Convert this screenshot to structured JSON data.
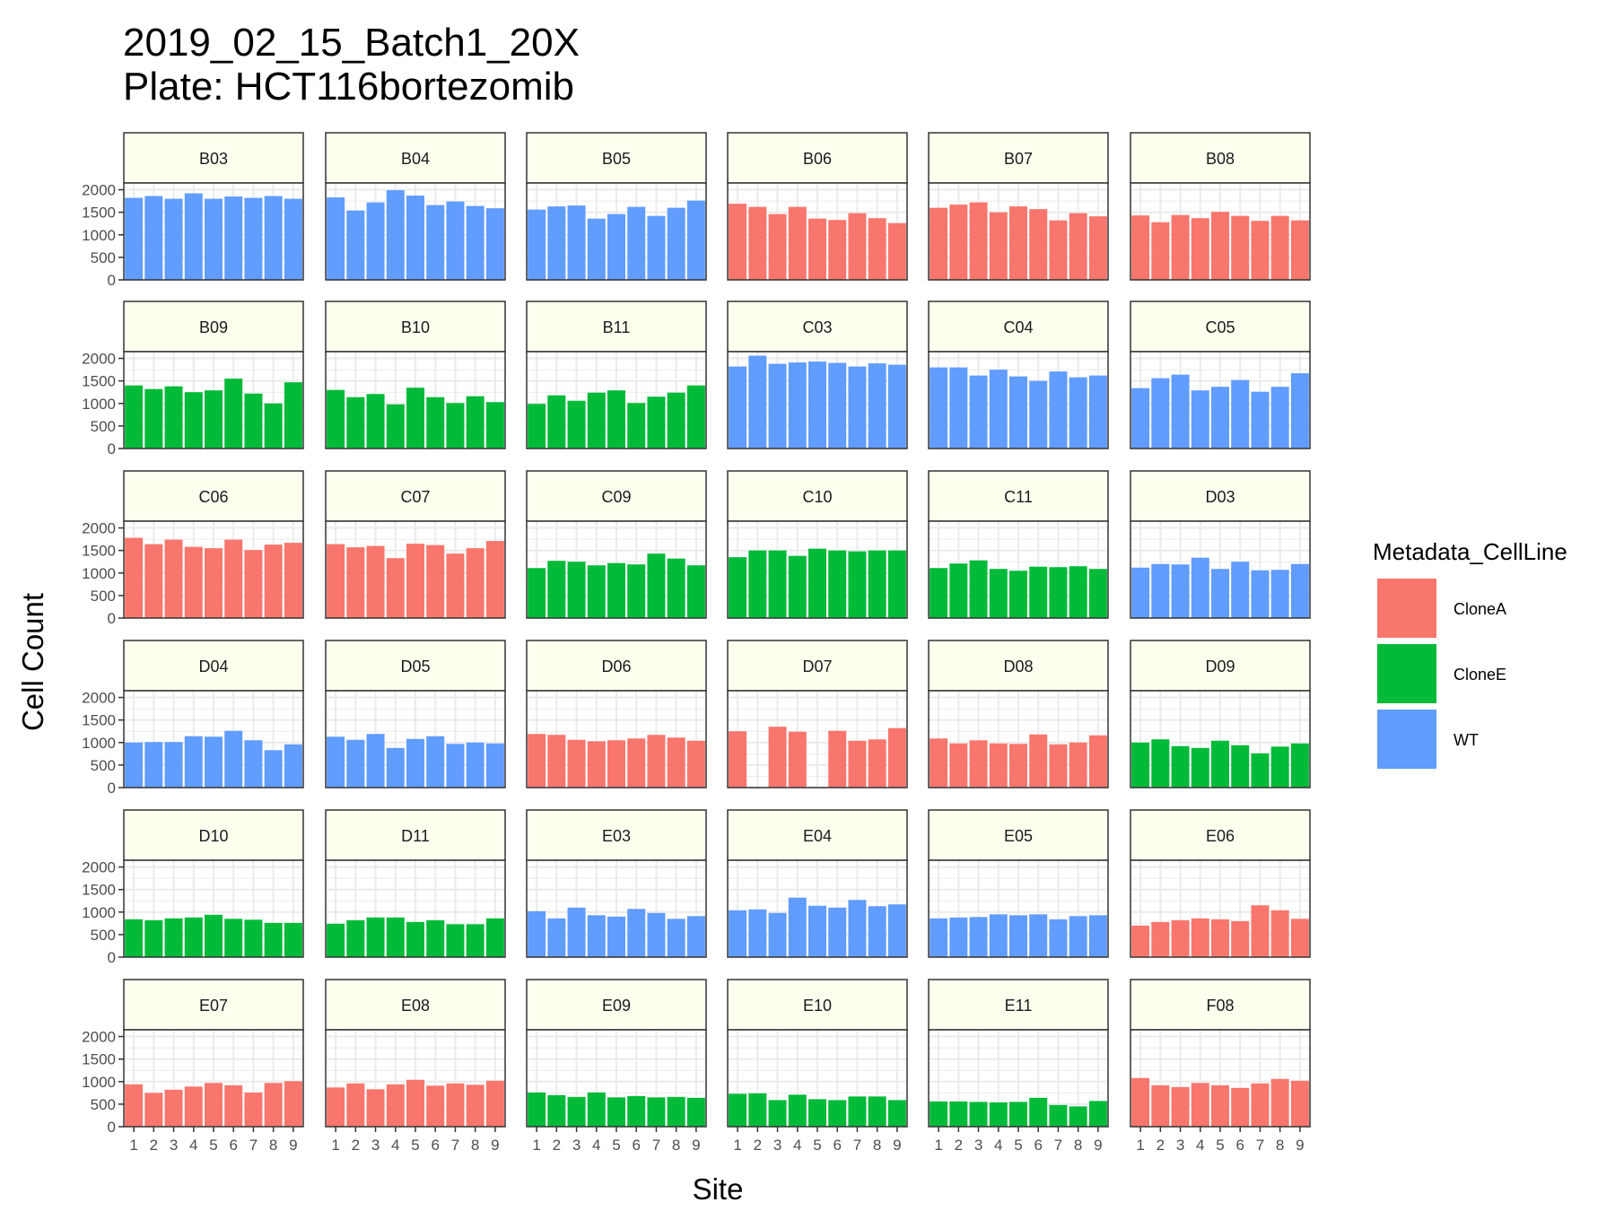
{
  "title_line1": "2019_02_15_Batch1_20X",
  "title_line2": "Plate: HCT116bortezomib",
  "xlabel": "Site",
  "ylabel": "Cell Count",
  "colors": {
    "CloneA": "#F8766D",
    "CloneE": "#00BA38",
    "WT": "#619CFF",
    "strip": "#FFFFF0",
    "grid": "#EBEBEB"
  },
  "chart_data": {
    "type": "bar",
    "facet_layout": "6 columns x 6 rows",
    "x": [
      "1",
      "2",
      "3",
      "4",
      "5",
      "6",
      "7",
      "8",
      "9"
    ],
    "ylim": [
      0,
      2150
    ],
    "yticks": [
      0,
      500,
      1000,
      1500,
      2000
    ],
    "ytick_labels": [
      "0",
      "500",
      "1000",
      "1500",
      "2000"
    ],
    "grid": true,
    "legend": {
      "title": "Metadata_CellLine",
      "position": "right",
      "entries": [
        "CloneA",
        "CloneE",
        "WT"
      ]
    },
    "facets": [
      {
        "well": "B03",
        "cell_line": "WT",
        "values": [
          1820,
          1860,
          1800,
          1920,
          1800,
          1850,
          1820,
          1860,
          1800
        ]
      },
      {
        "well": "B04",
        "cell_line": "WT",
        "values": [
          1830,
          1540,
          1720,
          1990,
          1870,
          1660,
          1740,
          1640,
          1590
        ]
      },
      {
        "well": "B05",
        "cell_line": "WT",
        "values": [
          1560,
          1630,
          1650,
          1360,
          1460,
          1620,
          1420,
          1600,
          1760
        ]
      },
      {
        "well": "B06",
        "cell_line": "CloneA",
        "values": [
          1690,
          1620,
          1460,
          1620,
          1360,
          1330,
          1480,
          1370,
          1260
        ]
      },
      {
        "well": "B07",
        "cell_line": "CloneA",
        "values": [
          1600,
          1670,
          1720,
          1500,
          1630,
          1570,
          1320,
          1480,
          1410
        ]
      },
      {
        "well": "B08",
        "cell_line": "CloneA",
        "values": [
          1430,
          1280,
          1440,
          1370,
          1510,
          1420,
          1310,
          1420,
          1320
        ]
      },
      {
        "well": "B09",
        "cell_line": "CloneE",
        "values": [
          1400,
          1320,
          1380,
          1250,
          1290,
          1550,
          1220,
          1000,
          1470
        ]
      },
      {
        "well": "B10",
        "cell_line": "CloneE",
        "values": [
          1300,
          1140,
          1210,
          980,
          1350,
          1140,
          1010,
          1160,
          1030
        ]
      },
      {
        "well": "B11",
        "cell_line": "CloneE",
        "values": [
          990,
          1180,
          1060,
          1240,
          1290,
          1010,
          1150,
          1240,
          1400
        ]
      },
      {
        "well": "C03",
        "cell_line": "WT",
        "values": [
          1820,
          2060,
          1880,
          1910,
          1930,
          1900,
          1820,
          1890,
          1860
        ]
      },
      {
        "well": "C04",
        "cell_line": "WT",
        "values": [
          1800,
          1800,
          1620,
          1750,
          1600,
          1500,
          1710,
          1580,
          1620
        ]
      },
      {
        "well": "C05",
        "cell_line": "WT",
        "values": [
          1340,
          1560,
          1640,
          1290,
          1370,
          1520,
          1260,
          1370,
          1670
        ]
      },
      {
        "well": "C06",
        "cell_line": "CloneA",
        "values": [
          1780,
          1640,
          1740,
          1580,
          1550,
          1740,
          1510,
          1630,
          1670
        ]
      },
      {
        "well": "C07",
        "cell_line": "CloneA",
        "values": [
          1640,
          1570,
          1600,
          1330,
          1650,
          1620,
          1430,
          1550,
          1710
        ]
      },
      {
        "well": "C09",
        "cell_line": "CloneE",
        "values": [
          1110,
          1270,
          1250,
          1170,
          1220,
          1190,
          1430,
          1320,
          1170
        ]
      },
      {
        "well": "C10",
        "cell_line": "CloneE",
        "values": [
          1350,
          1500,
          1500,
          1380,
          1540,
          1500,
          1480,
          1500,
          1500
        ]
      },
      {
        "well": "C11",
        "cell_line": "CloneE",
        "values": [
          1110,
          1210,
          1280,
          1090,
          1050,
          1140,
          1130,
          1150,
          1090
        ]
      },
      {
        "well": "D03",
        "cell_line": "WT",
        "values": [
          1120,
          1200,
          1190,
          1340,
          1090,
          1250,
          1060,
          1070,
          1200
        ]
      },
      {
        "well": "D04",
        "cell_line": "WT",
        "values": [
          1000,
          1010,
          1010,
          1140,
          1130,
          1260,
          1050,
          830,
          960
        ]
      },
      {
        "well": "D05",
        "cell_line": "WT",
        "values": [
          1130,
          1060,
          1190,
          880,
          1080,
          1140,
          970,
          1000,
          980
        ]
      },
      {
        "well": "D06",
        "cell_line": "CloneA",
        "values": [
          1190,
          1170,
          1060,
          1030,
          1050,
          1090,
          1170,
          1110,
          1040
        ]
      },
      {
        "well": "D07",
        "cell_line": "CloneA",
        "values": [
          1250,
          15,
          1350,
          1240,
          15,
          1260,
          1040,
          1070,
          1320
        ]
      },
      {
        "well": "D08",
        "cell_line": "CloneA",
        "values": [
          1090,
          980,
          1050,
          980,
          970,
          1180,
          960,
          1000,
          1160
        ]
      },
      {
        "well": "D09",
        "cell_line": "CloneE",
        "values": [
          1000,
          1070,
          920,
          880,
          1040,
          940,
          760,
          910,
          980
        ]
      },
      {
        "well": "D10",
        "cell_line": "CloneE",
        "values": [
          840,
          820,
          860,
          880,
          940,
          850,
          830,
          760,
          760
        ]
      },
      {
        "well": "D11",
        "cell_line": "CloneE",
        "values": [
          740,
          820,
          880,
          880,
          780,
          820,
          730,
          730,
          860
        ]
      },
      {
        "well": "E03",
        "cell_line": "WT",
        "values": [
          1020,
          860,
          1100,
          930,
          900,
          1070,
          980,
          850,
          910
        ]
      },
      {
        "well": "E04",
        "cell_line": "WT",
        "values": [
          1040,
          1060,
          980,
          1320,
          1140,
          1100,
          1270,
          1130,
          1170
        ]
      },
      {
        "well": "E05",
        "cell_line": "WT",
        "values": [
          860,
          880,
          890,
          950,
          930,
          950,
          840,
          910,
          930
        ]
      },
      {
        "well": "E06",
        "cell_line": "CloneA",
        "values": [
          700,
          780,
          820,
          860,
          840,
          800,
          1150,
          1040,
          850
        ]
      },
      {
        "well": "E07",
        "cell_line": "CloneA",
        "values": [
          940,
          750,
          820,
          890,
          970,
          920,
          760,
          970,
          1010
        ]
      },
      {
        "well": "E08",
        "cell_line": "CloneA",
        "values": [
          870,
          960,
          830,
          940,
          1040,
          910,
          960,
          930,
          1020
        ]
      },
      {
        "well": "E09",
        "cell_line": "CloneE",
        "values": [
          760,
          700,
          660,
          760,
          650,
          680,
          650,
          660,
          640
        ]
      },
      {
        "well": "E10",
        "cell_line": "CloneE",
        "values": [
          730,
          740,
          590,
          710,
          610,
          590,
          670,
          670,
          590
        ]
      },
      {
        "well": "E11",
        "cell_line": "CloneE",
        "values": [
          560,
          560,
          550,
          540,
          550,
          640,
          480,
          450,
          570
        ]
      },
      {
        "well": "F08",
        "cell_line": "CloneA",
        "values": [
          1080,
          920,
          880,
          970,
          920,
          860,
          960,
          1060,
          1020
        ]
      }
    ]
  }
}
